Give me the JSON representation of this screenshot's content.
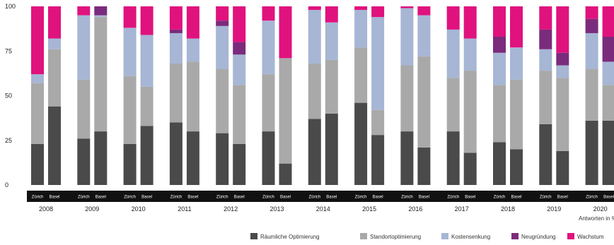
{
  "chart_data": {
    "type": "bar",
    "stacked": true,
    "ylim": [
      0,
      100
    ],
    "yticks": [
      0,
      25,
      50,
      75,
      100
    ],
    "groups": [
      "2008",
      "2009",
      "2010",
      "2011",
      "2012",
      "2013",
      "2014",
      "2015",
      "2016",
      "2017",
      "2018",
      "2019",
      "2020"
    ],
    "cities": [
      "Zürich",
      "Basel"
    ],
    "series": [
      {
        "name": "Räumliche Optimierung",
        "color": "#4a4a4a"
      },
      {
        "name": "Standortoptimierung",
        "color": "#a9a9a9"
      },
      {
        "name": "Kostensenkung",
        "color": "#a6b6d4"
      },
      {
        "name": "Neugründung",
        "color": "#7b2b7c"
      },
      {
        "name": "Wachstum",
        "color": "#e0127e"
      }
    ],
    "bars": [
      {
        "group": "2008",
        "city": "Zürich",
        "values": [
          23,
          34,
          5,
          0,
          38
        ]
      },
      {
        "group": "2008",
        "city": "Basel",
        "values": [
          44,
          32,
          6,
          0,
          18
        ]
      },
      {
        "group": "2009",
        "city": "Zürich",
        "values": [
          26,
          33,
          36,
          0,
          5
        ]
      },
      {
        "group": "2009",
        "city": "Basel",
        "values": [
          30,
          64,
          1,
          5,
          0
        ]
      },
      {
        "group": "2010",
        "city": "Zürich",
        "values": [
          23,
          38,
          27,
          0,
          12
        ]
      },
      {
        "group": "2010",
        "city": "Basel",
        "values": [
          33,
          22,
          29,
          0,
          16
        ]
      },
      {
        "group": "2011",
        "city": "Zürich",
        "values": [
          35,
          33,
          17,
          2,
          13
        ]
      },
      {
        "group": "2011",
        "city": "Basel",
        "values": [
          30,
          39,
          13,
          0,
          18
        ]
      },
      {
        "group": "2012",
        "city": "Zürich",
        "values": [
          29,
          36,
          24,
          3,
          8
        ]
      },
      {
        "group": "2012",
        "city": "Basel",
        "values": [
          23,
          33,
          17,
          7,
          20
        ]
      },
      {
        "group": "2013",
        "city": "Zürich",
        "values": [
          30,
          32,
          30,
          0,
          8
        ]
      },
      {
        "group": "2013",
        "city": "Basel",
        "values": [
          12,
          59,
          0,
          0,
          29
        ]
      },
      {
        "group": "2014",
        "city": "Zürich",
        "values": [
          37,
          31,
          30,
          0,
          2
        ]
      },
      {
        "group": "2014",
        "city": "Basel",
        "values": [
          40,
          30,
          21,
          0,
          9
        ]
      },
      {
        "group": "2015",
        "city": "Zürich",
        "values": [
          46,
          31,
          21,
          0,
          2
        ]
      },
      {
        "group": "2015",
        "city": "Basel",
        "values": [
          28,
          14,
          52,
          0,
          6
        ]
      },
      {
        "group": "2016",
        "city": "Zürich",
        "values": [
          30,
          37,
          32,
          0,
          1
        ]
      },
      {
        "group": "2016",
        "city": "Basel",
        "values": [
          21,
          51,
          23,
          0,
          5
        ]
      },
      {
        "group": "2017",
        "city": "Zürich",
        "values": [
          30,
          30,
          27,
          0,
          13
        ]
      },
      {
        "group": "2017",
        "city": "Basel",
        "values": [
          18,
          46,
          18,
          0,
          18
        ]
      },
      {
        "group": "2018",
        "city": "Zürich",
        "values": [
          24,
          32,
          18,
          9,
          17
        ]
      },
      {
        "group": "2018",
        "city": "Basel",
        "values": [
          20,
          39,
          18,
          0,
          23
        ]
      },
      {
        "group": "2019",
        "city": "Zürich",
        "values": [
          34,
          30,
          12,
          11,
          13
        ]
      },
      {
        "group": "2019",
        "city": "Basel",
        "values": [
          19,
          41,
          7,
          7,
          26
        ]
      },
      {
        "group": "2020",
        "city": "Zürich",
        "values": [
          36,
          29,
          20,
          8,
          7
        ]
      },
      {
        "group": "2020",
        "city": "Basel",
        "values": [
          36,
          20,
          13,
          14,
          17
        ]
      }
    ],
    "note": "Antworten in %",
    "legend_position": "bottom-right"
  }
}
